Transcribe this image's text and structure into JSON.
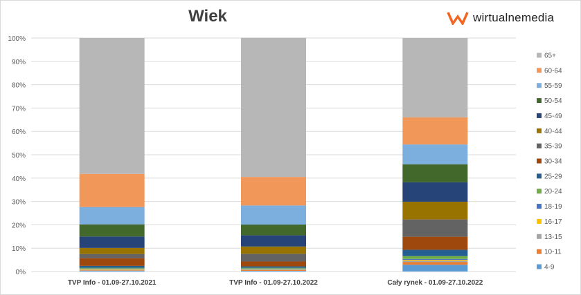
{
  "chart_data": {
    "type": "bar",
    "stacked": true,
    "normalized": true,
    "title": "Wiek",
    "xlabel": "",
    "ylabel": "",
    "ylim": [
      0,
      100
    ],
    "yticks": [
      "0%",
      "10%",
      "20%",
      "30%",
      "40%",
      "50%",
      "60%",
      "70%",
      "80%",
      "90%",
      "100%"
    ],
    "grid": true,
    "legend_position": "right",
    "categories": [
      "TVP Info - 01.09-27.10.2021",
      "TVP Info - 01.09-27.10.2022",
      "Cały rynek - 01.09-27.10.2022"
    ],
    "series": [
      {
        "name": "4-9",
        "color": "#5B9BD5",
        "values": [
          0.3,
          0.3,
          2.9
        ]
      },
      {
        "name": "10-11",
        "color": "#ED7D31",
        "values": [
          0.2,
          0.3,
          1.1
        ]
      },
      {
        "name": "13-15",
        "color": "#A5A5A5",
        "values": [
          0.3,
          0.3,
          0.6
        ]
      },
      {
        "name": "16-17",
        "color": "#FFC000",
        "values": [
          0.3,
          0.2,
          0.4
        ]
      },
      {
        "name": "18-19",
        "color": "#4472C4",
        "values": [
          0.2,
          0.2,
          0.4
        ]
      },
      {
        "name": "20-24",
        "color": "#70AD47",
        "values": [
          0.3,
          0.3,
          1.2
        ]
      },
      {
        "name": "25-29",
        "color": "#255E91",
        "values": [
          0.8,
          0.6,
          2.7
        ]
      },
      {
        "name": "30-34",
        "color": "#9E480E",
        "values": [
          3.3,
          2.1,
          5.6
        ]
      },
      {
        "name": "35-39",
        "color": "#636363",
        "values": [
          1.8,
          3.3,
          7.4
        ]
      },
      {
        "name": "40-44",
        "color": "#997300",
        "values": [
          2.6,
          3.1,
          7.6
        ]
      },
      {
        "name": "45-49",
        "color": "#264478",
        "values": [
          4.9,
          4.8,
          8.3
        ]
      },
      {
        "name": "50-54",
        "color": "#43682B",
        "values": [
          5.2,
          4.6,
          7.7
        ]
      },
      {
        "name": "55-59",
        "color": "#7CAFDD",
        "values": [
          7.4,
          8.2,
          8.5
        ]
      },
      {
        "name": "60-64",
        "color": "#F1975A",
        "values": [
          14.2,
          12.2,
          11.6
        ]
      },
      {
        "name": "65+",
        "color": "#B7B7B7",
        "values": [
          58.2,
          59.6,
          34.0
        ]
      }
    ]
  },
  "logo": {
    "text": "wirtualnemedia",
    "color": "#F26522"
  }
}
